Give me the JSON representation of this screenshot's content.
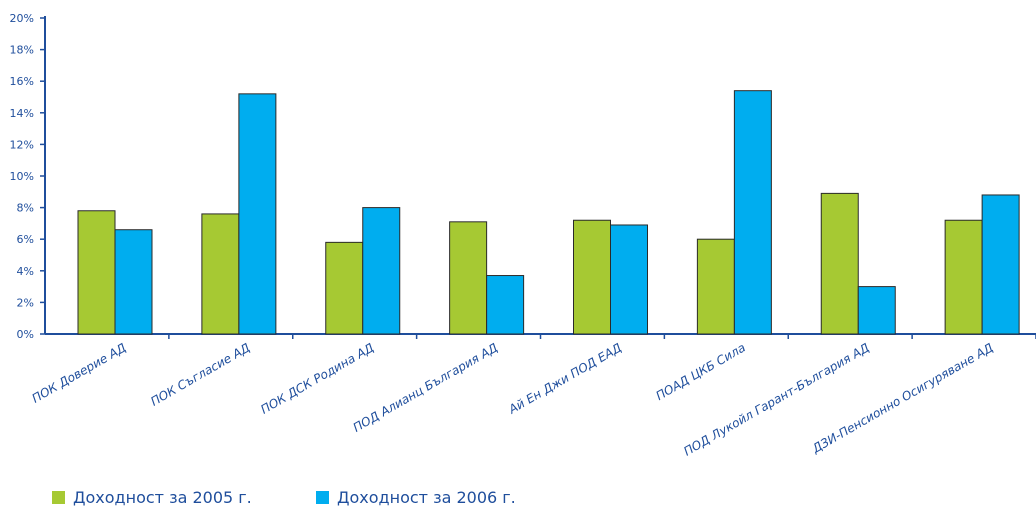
{
  "chart_data": {
    "type": "bar",
    "categories": [
      "ПОК Доверие АД",
      "ПОК Съгласие АД",
      "ПОК ДСК Родина АД",
      "ПОД Алианц България АД",
      "Ай Ен Джи ПОД ЕАД",
      "ПОАД ЦКБ Сила",
      "ПОД Лукойл Гарант-България АД",
      "ДЗИ-Пенсионно Осигуряване АД"
    ],
    "series": [
      {
        "name": "Доходност за 2005 г.",
        "color": "#a6c933",
        "values": [
          7.8,
          7.6,
          5.8,
          7.1,
          7.2,
          6.0,
          8.9,
          7.2
        ]
      },
      {
        "name": "Доходност за 2006 г.",
        "color": "#00adef",
        "values": [
          6.6,
          15.2,
          8.0,
          3.7,
          6.9,
          15.4,
          3.0,
          8.8
        ]
      }
    ],
    "yticks": [
      "0%",
      "2%",
      "4%",
      "6%",
      "8%",
      "10%",
      "12%",
      "14%",
      "16%",
      "18%",
      "20%"
    ],
    "ylim": [
      0,
      20
    ],
    "title": "",
    "xlabel": "",
    "ylabel": "",
    "grid": false,
    "legend_position": "bottom-left"
  }
}
